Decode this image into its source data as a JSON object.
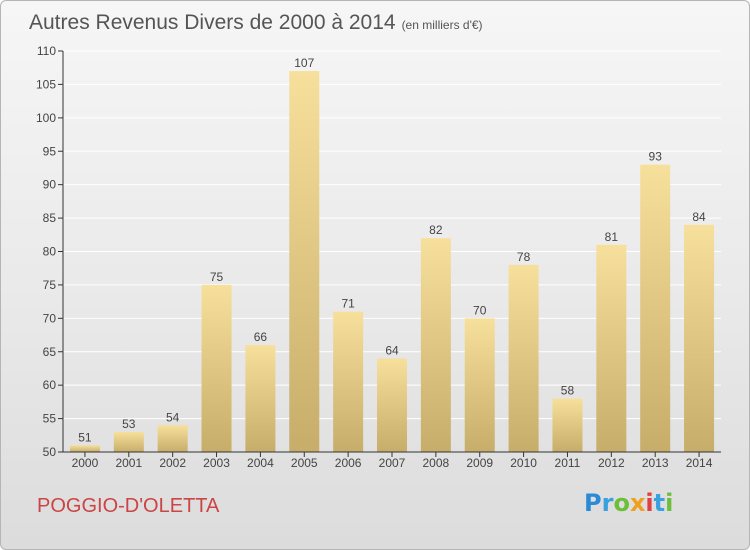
{
  "title": "Autres Revenus Divers de 2000 à 2014",
  "subtitle": "(en milliers d'€)",
  "commune": "POGGIO-D'OLETTA",
  "logo": {
    "letters": [
      "P",
      "r",
      "o",
      "x",
      "i",
      "t",
      "i"
    ],
    "colors": [
      "#2a8ad6",
      "#3aa0e0",
      "#6cbf3a",
      "#f0a020",
      "#e04040",
      "#3aa0e0",
      "#6cbf3a"
    ]
  },
  "colors": {
    "bar_top": "#f7df9c",
    "bar_bottom": "#c7ad6a",
    "commune_text": "#cc4444",
    "axis": "#333333",
    "grid": "#ffffff"
  },
  "chart_data": {
    "type": "bar",
    "categories": [
      "2000",
      "2001",
      "2002",
      "2003",
      "2004",
      "2005",
      "2006",
      "2007",
      "2008",
      "2009",
      "2010",
      "2011",
      "2012",
      "2013",
      "2014"
    ],
    "values": [
      51,
      53,
      54,
      75,
      66,
      107,
      71,
      64,
      82,
      70,
      78,
      58,
      81,
      93,
      84
    ],
    "ylim": [
      50,
      110
    ],
    "yticks": [
      50,
      55,
      60,
      65,
      70,
      75,
      80,
      85,
      90,
      95,
      100,
      105,
      110
    ],
    "grid": true,
    "title": "Autres Revenus Divers de 2000 à 2014",
    "xlabel": "",
    "ylabel": ""
  }
}
